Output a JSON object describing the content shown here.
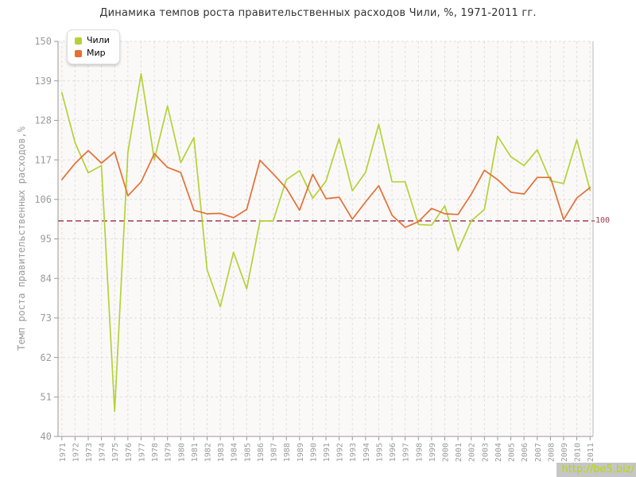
{
  "watermark": {
    "text": "http://be5.biz/",
    "text_color": "#b5da00",
    "bg_color": "#c6c6c6"
  },
  "chart_data": {
    "type": "line",
    "title": "Динамика темпов роста правительственных расходов Чили, %, 1971-2011 гг.",
    "ylabel": "Темп роста правительственных расходов,%",
    "xlabel": "",
    "categories": [
      "1971",
      "1972",
      "1973",
      "1974",
      "1975",
      "1976",
      "1977",
      "1978",
      "1979",
      "1980",
      "1981",
      "1982",
      "1983",
      "1984",
      "1985",
      "1986",
      "1987",
      "1988",
      "1989",
      "1990",
      "1991",
      "1992",
      "1993",
      "1994",
      "1995",
      "1996",
      "1997",
      "1998",
      "1999",
      "2000",
      "2001",
      "2002",
      "2003",
      "2004",
      "2005",
      "2006",
      "2007",
      "2008",
      "2009",
      "2010",
      "2011"
    ],
    "series": [
      {
        "name": "Чили",
        "color": "#b4d237",
        "values": [
          135.7,
          121.8,
          113.4,
          115.4,
          47,
          119.2,
          141,
          117,
          132,
          116.2,
          123.2,
          86.4,
          76.1,
          91.3,
          81.1,
          100,
          100,
          111.5,
          114,
          106.3,
          111.1,
          122.9,
          108.4,
          113.5,
          126.9,
          110.9,
          110.9,
          99,
          98.8,
          104.2,
          91.7,
          100,
          103.2,
          123.6,
          117.9,
          115.4,
          119.8,
          111.2,
          110.4,
          122.6,
          108.5
        ]
      },
      {
        "name": "Мир",
        "color": "#e56f33",
        "values": [
          111.5,
          116,
          119.6,
          116.1,
          119.2,
          107,
          110.9,
          118.7,
          114.9,
          113.5,
          103,
          102,
          102.1,
          100.9,
          103.2,
          116.9,
          113.1,
          109.1,
          103,
          113,
          106.2,
          106.6,
          100.5,
          105.3,
          109.8,
          101.6,
          98.2,
          99.8,
          103.5,
          102,
          101.8,
          107.4,
          114.1,
          111.5,
          108,
          107.5,
          112.1,
          112.1,
          100.4,
          106.4,
          109.3
        ]
      }
    ],
    "yticks": [
      150,
      139,
      128,
      117,
      106,
      95,
      84,
      73,
      62,
      51,
      40
    ],
    "ylim": [
      40,
      150
    ],
    "refline": {
      "value": 100,
      "label": "100",
      "color": "#a23b54"
    },
    "grid": true,
    "legend_position": "top-left"
  }
}
